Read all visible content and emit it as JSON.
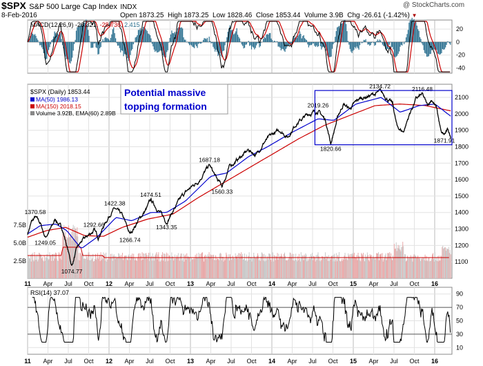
{
  "header": {
    "symbol": "$SPX",
    "name": "S&P 500 Large Cap Index",
    "exchange": "INDX",
    "date": "8-Feb-2016",
    "open_label": "Open",
    "open": "1873.25",
    "high_label": "High",
    "high": "1873.25",
    "low_label": "Low",
    "low": "1828.46",
    "close_label": "Close",
    "close": "1853.44",
    "volume_label": "Volume",
    "volume": "3.9B",
    "chg_label": "Chg",
    "chg": "-26.61 (-1.42%)",
    "chg_arrow": "▼",
    "watermark": "@ StockCharts.com"
  },
  "macd_panel": {
    "label": "MACD(12,26,9)",
    "v1": "-26.321",
    "v2": "-28.736",
    "v3": "2.415",
    "colors": {
      "macd": "#000000",
      "signal": "#cc0000",
      "hist": "#2a6f8f"
    }
  },
  "price_panel": {
    "legend": [
      {
        "text": "$SPX (Daily) 1853.44",
        "color": "#000000"
      },
      {
        "text": "MA(50) 1986.13",
        "color": "#0000cc"
      },
      {
        "text": "MA(150) 2018.15",
        "color": "#cc0000"
      },
      {
        "text": "Volume 3.92B, EMA(60) 2.89B",
        "color": "#000000"
      }
    ],
    "annotation_line1": "Potential massive",
    "annotation_line2": "topping formation",
    "annotation_color": "#0000cc"
  },
  "rsi_panel": {
    "label": "RSI(14) 37.07"
  },
  "chart_data": {
    "type": "line",
    "x_ticks": [
      "11",
      "Apr",
      "Jul",
      "Oct",
      "12",
      "Apr",
      "Jul",
      "Oct",
      "13",
      "Apr",
      "Jul",
      "Oct",
      "14",
      "Apr",
      "Jul",
      "Oct",
      "15",
      "Apr",
      "Jul",
      "Oct",
      "16"
    ],
    "price_axis": [
      1100,
      1200,
      1300,
      1400,
      1500,
      1600,
      1700,
      1800,
      1900,
      2000,
      2100
    ],
    "price_ylim": [
      1000,
      2180
    ],
    "volume_axis": [
      "2.5B",
      "5.0B",
      "7.5B"
    ],
    "macd_axis": [
      20,
      0,
      -20,
      -40
    ],
    "macd_ylim": [
      -48,
      34
    ],
    "rsi_axis": [
      10,
      30,
      50,
      70,
      90
    ],
    "rsi_ylim": [
      0,
      100
    ],
    "price_points": [
      {
        "t": 0,
        "v": 1272
      },
      {
        "t": 0.06,
        "v": 1340
      },
      {
        "t": 0.12,
        "v": 1370.58
      },
      {
        "t": 0.2,
        "v": 1335
      },
      {
        "t": 0.28,
        "v": 1249.05
      },
      {
        "t": 0.38,
        "v": 1310
      },
      {
        "t": 0.44,
        "v": 1360
      },
      {
        "t": 0.55,
        "v": 1300
      },
      {
        "t": 0.62,
        "v": 1200
      },
      {
        "t": 0.7,
        "v": 1074.77
      },
      {
        "t": 0.78,
        "v": 1180
      },
      {
        "t": 0.86,
        "v": 1225
      },
      {
        "t": 0.96,
        "v": 1260
      },
      {
        "t": 1.05,
        "v": 1292.66
      },
      {
        "t": 1.12,
        "v": 1250
      },
      {
        "t": 1.22,
        "v": 1330
      },
      {
        "t": 1.32,
        "v": 1400
      },
      {
        "t": 1.38,
        "v": 1422.38
      },
      {
        "t": 1.5,
        "v": 1380
      },
      {
        "t": 1.62,
        "v": 1266.74
      },
      {
        "t": 1.75,
        "v": 1350
      },
      {
        "t": 1.88,
        "v": 1420
      },
      {
        "t": 1.95,
        "v": 1474.51
      },
      {
        "t": 2.08,
        "v": 1410
      },
      {
        "t": 2.2,
        "v": 1343.35
      },
      {
        "t": 2.32,
        "v": 1420
      },
      {
        "t": 2.45,
        "v": 1500
      },
      {
        "t": 2.55,
        "v": 1540
      },
      {
        "t": 2.7,
        "v": 1590
      },
      {
        "t": 2.88,
        "v": 1687.18
      },
      {
        "t": 3.0,
        "v": 1600
      },
      {
        "t": 3.08,
        "v": 1560.33
      },
      {
        "t": 3.2,
        "v": 1680
      },
      {
        "t": 3.32,
        "v": 1720
      },
      {
        "t": 3.5,
        "v": 1780
      },
      {
        "t": 3.62,
        "v": 1750
      },
      {
        "t": 3.75,
        "v": 1830
      },
      {
        "t": 3.9,
        "v": 1880
      },
      {
        "t": 4.0,
        "v": 1900
      },
      {
        "t": 4.12,
        "v": 1860
      },
      {
        "t": 4.25,
        "v": 1940
      },
      {
        "t": 4.45,
        "v": 2000
      },
      {
        "t": 4.6,
        "v": 2019.26
      },
      {
        "t": 4.72,
        "v": 1960
      },
      {
        "t": 4.8,
        "v": 1820.66
      },
      {
        "t": 4.92,
        "v": 1990
      },
      {
        "t": 5.0,
        "v": 2060
      },
      {
        "t": 5.1,
        "v": 2030
      },
      {
        "t": 5.25,
        "v": 2090
      },
      {
        "t": 5.4,
        "v": 2110
      },
      {
        "t": 5.5,
        "v": 2120
      },
      {
        "t": 5.58,
        "v": 2134.72
      },
      {
        "t": 5.68,
        "v": 2100
      },
      {
        "t": 5.78,
        "v": 2060
      },
      {
        "t": 5.85,
        "v": 1920
      },
      {
        "t": 5.95,
        "v": 1890
      },
      {
        "t": 6.05,
        "v": 2000
      },
      {
        "t": 6.15,
        "v": 2090
      },
      {
        "t": 6.25,
        "v": 2116.48
      },
      {
        "t": 6.33,
        "v": 2050
      },
      {
        "t": 6.4,
        "v": 2090
      },
      {
        "t": 6.48,
        "v": 2030
      },
      {
        "t": 6.55,
        "v": 1880
      },
      {
        "t": 6.6,
        "v": 1871.91
      },
      {
        "t": 6.66,
        "v": 1900
      },
      {
        "t": 6.7,
        "v": 1853.44
      }
    ],
    "ma50_points": [
      {
        "t": 0,
        "v": 1270
      },
      {
        "t": 0.2,
        "v": 1320
      },
      {
        "t": 0.45,
        "v": 1330
      },
      {
        "t": 0.62,
        "v": 1290
      },
      {
        "t": 0.85,
        "v": 1180
      },
      {
        "t": 1.1,
        "v": 1250
      },
      {
        "t": 1.4,
        "v": 1370
      },
      {
        "t": 1.65,
        "v": 1350
      },
      {
        "t": 1.95,
        "v": 1400
      },
      {
        "t": 2.2,
        "v": 1400
      },
      {
        "t": 2.5,
        "v": 1470
      },
      {
        "t": 2.9,
        "v": 1620
      },
      {
        "t": 3.15,
        "v": 1640
      },
      {
        "t": 3.5,
        "v": 1740
      },
      {
        "t": 3.8,
        "v": 1800
      },
      {
        "t": 4.2,
        "v": 1890
      },
      {
        "t": 4.6,
        "v": 1970
      },
      {
        "t": 4.85,
        "v": 1960
      },
      {
        "t": 5.2,
        "v": 2060
      },
      {
        "t": 5.6,
        "v": 2100
      },
      {
        "t": 5.9,
        "v": 2010
      },
      {
        "t": 6.2,
        "v": 2050
      },
      {
        "t": 6.45,
        "v": 2060
      },
      {
        "t": 6.7,
        "v": 1986.13
      }
    ],
    "ma150_points": [
      {
        "t": 0,
        "v": 1250
      },
      {
        "t": 0.3,
        "v": 1290
      },
      {
        "t": 0.6,
        "v": 1310
      },
      {
        "t": 0.9,
        "v": 1260
      },
      {
        "t": 1.2,
        "v": 1255
      },
      {
        "t": 1.5,
        "v": 1310
      },
      {
        "t": 1.9,
        "v": 1360
      },
      {
        "t": 2.3,
        "v": 1390
      },
      {
        "t": 2.7,
        "v": 1490
      },
      {
        "t": 3.1,
        "v": 1580
      },
      {
        "t": 3.5,
        "v": 1670
      },
      {
        "t": 3.9,
        "v": 1760
      },
      {
        "t": 4.3,
        "v": 1850
      },
      {
        "t": 4.7,
        "v": 1930
      },
      {
        "t": 5.1,
        "v": 1990
      },
      {
        "t": 5.5,
        "v": 2050
      },
      {
        "t": 5.9,
        "v": 2060
      },
      {
        "t": 6.3,
        "v": 2050
      },
      {
        "t": 6.7,
        "v": 2018.15
      }
    ],
    "price_labels": [
      {
        "t": 0.12,
        "v": 1370.58,
        "text": "1370.58",
        "pos": "above"
      },
      {
        "t": 0.28,
        "v": 1249.05,
        "text": "1249.05",
        "pos": "below"
      },
      {
        "t": 0.7,
        "v": 1074.77,
        "text": "1074.77",
        "pos": "below"
      },
      {
        "t": 1.05,
        "v": 1292.66,
        "text": "1292.66",
        "pos": "above"
      },
      {
        "t": 1.38,
        "v": 1422.38,
        "text": "1422.38",
        "pos": "above"
      },
      {
        "t": 1.62,
        "v": 1266.74,
        "text": "1266.74",
        "pos": "below"
      },
      {
        "t": 1.95,
        "v": 1474.51,
        "text": "1474.51",
        "pos": "above"
      },
      {
        "t": 2.2,
        "v": 1343.35,
        "text": "1343.35",
        "pos": "below"
      },
      {
        "t": 2.88,
        "v": 1687.18,
        "text": "1687.18",
        "pos": "above"
      },
      {
        "t": 3.08,
        "v": 1560.33,
        "text": "1560.33",
        "pos": "below"
      },
      {
        "t": 4.6,
        "v": 2019.26,
        "text": "2019.26",
        "pos": "above"
      },
      {
        "t": 4.8,
        "v": 1820.66,
        "text": "1820.66",
        "pos": "below"
      },
      {
        "t": 5.58,
        "v": 2134.72,
        "text": "2134.72",
        "pos": "above"
      },
      {
        "t": 6.25,
        "v": 2116.48,
        "text": "2116.48",
        "pos": "above"
      },
      {
        "t": 6.6,
        "v": 1871.91,
        "text": "1871.91",
        "pos": "below"
      }
    ],
    "top_box": {
      "t0": 4.55,
      "t1": 6.72,
      "v0": 1812,
      "v1": 2142
    }
  }
}
